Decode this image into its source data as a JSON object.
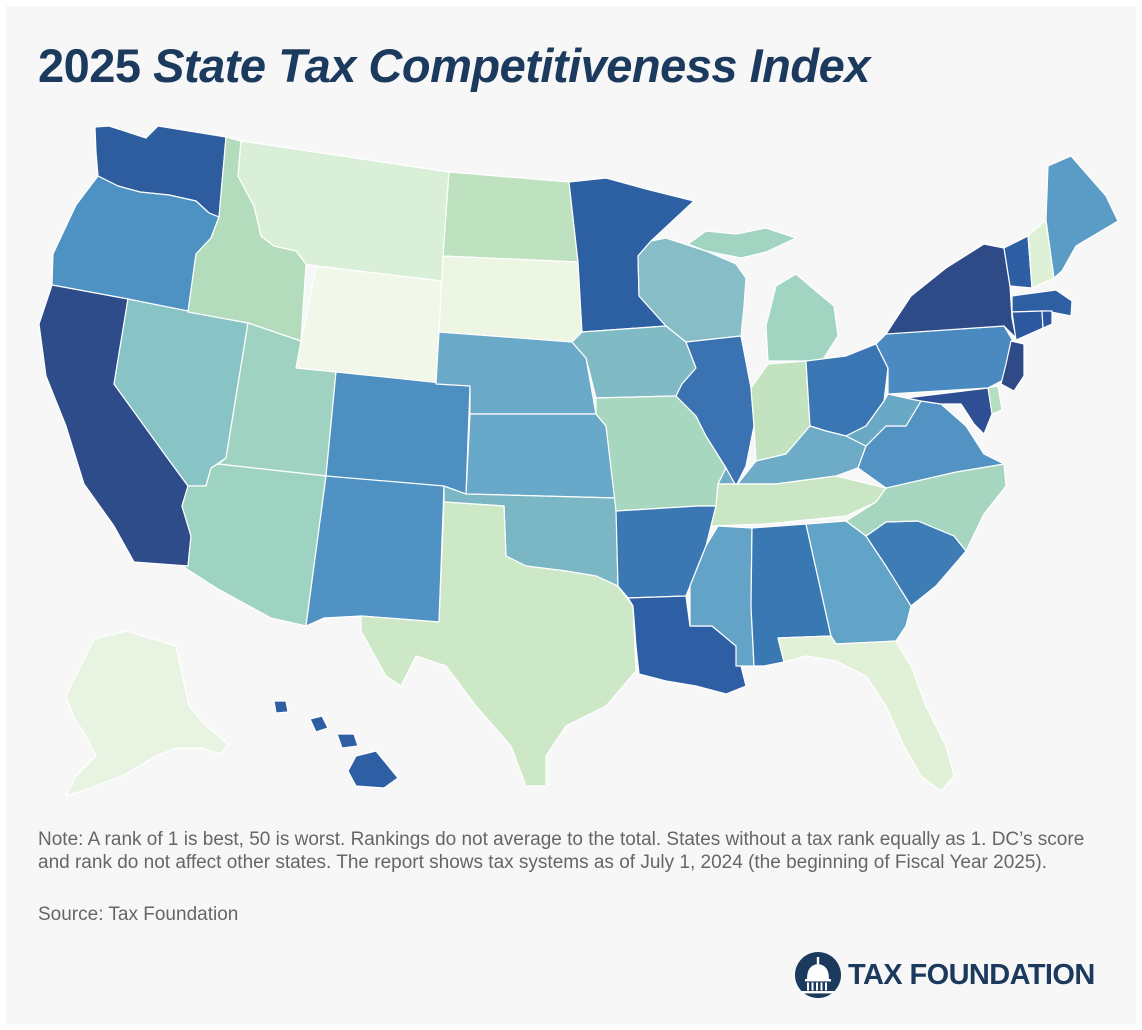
{
  "title": {
    "year": "2025",
    "name": "State Tax Competitiveness Index"
  },
  "note": "Note: A rank of 1 is best, 50 is worst. Rankings do not average to the total. States without a tax rank equally as 1. DC’s score and rank do not affect other states. The report shows tax systems as of July 1, 2024 (the beginning of Fiscal Year 2025).",
  "source": "Source: Tax Foundation",
  "logo_text": "TAX FOUNDATION",
  "colors": {
    "title": "#1b3a5e",
    "scale": [
      "#f1f8ea",
      "#e1f1d8",
      "#cde8c7",
      "#b4ddbe",
      "#a1d5c0",
      "#88c0c6",
      "#6aaac9",
      "#4f92c3",
      "#3a78b3",
      "#2b5d9d",
      "#2e4b87"
    ]
  },
  "states": [
    {
      "name": "Washington",
      "shade": "#2e5d9f"
    },
    {
      "name": "Oregon",
      "shade": "#4d92c3"
    },
    {
      "name": "California",
      "shade": "#2e4b8a"
    },
    {
      "name": "Nevada",
      "shade": "#88c3c5"
    },
    {
      "name": "Idaho",
      "shade": "#b2dcbc"
    },
    {
      "name": "Montana",
      "shade": "#d9efd7"
    },
    {
      "name": "Wyoming",
      "shade": "#f1f8ea"
    },
    {
      "name": "Utah",
      "shade": "#9fd2c1"
    },
    {
      "name": "Arizona",
      "shade": "#9ed3c1"
    },
    {
      "name": "Colorado",
      "shade": "#4c8fc0"
    },
    {
      "name": "New Mexico",
      "shade": "#4f92c3"
    },
    {
      "name": "North Dakota",
      "shade": "#bee1c0"
    },
    {
      "name": "South Dakota",
      "shade": "#ecf6e3"
    },
    {
      "name": "Nebraska",
      "shade": "#6ba9c9"
    },
    {
      "name": "Kansas",
      "shade": "#68a8c8"
    },
    {
      "name": "Oklahoma",
      "shade": "#7ab6c4"
    },
    {
      "name": "Texas",
      "shade": "#cde8c7"
    },
    {
      "name": "Minnesota",
      "shade": "#2d5fa3"
    },
    {
      "name": "Iowa",
      "shade": "#80bac5"
    },
    {
      "name": "Missouri",
      "shade": "#a8d7c0"
    },
    {
      "name": "Arkansas",
      "shade": "#3b78b3"
    },
    {
      "name": "Louisiana",
      "shade": "#2e5fa5"
    },
    {
      "name": "Wisconsin",
      "shade": "#86bdc6"
    },
    {
      "name": "Illinois",
      "shade": "#3a72b2"
    },
    {
      "name": "Michigan",
      "shade": "#a2d4c2"
    },
    {
      "name": "Indiana",
      "shade": "#c3e3c0"
    },
    {
      "name": "Ohio",
      "shade": "#3b76b4"
    },
    {
      "name": "Kentucky",
      "shade": "#6dabc7"
    },
    {
      "name": "Tennessee",
      "shade": "#cbe6c5"
    },
    {
      "name": "Mississippi",
      "shade": "#62a3c7"
    },
    {
      "name": "Alabama",
      "shade": "#3a78b3"
    },
    {
      "name": "Georgia",
      "shade": "#62a3c8"
    },
    {
      "name": "Florida",
      "shade": "#e1f1d8"
    },
    {
      "name": "South Carolina",
      "shade": "#3e7cb6"
    },
    {
      "name": "North Carolina",
      "shade": "#a6d5c0"
    },
    {
      "name": "Virginia",
      "shade": "#5293c3"
    },
    {
      "name": "West Virginia",
      "shade": "#6aa9c6"
    },
    {
      "name": "Pennsylvania",
      "shade": "#4b8ac0"
    },
    {
      "name": "New York",
      "shade": "#2e4b87"
    },
    {
      "name": "Vermont",
      "shade": "#2d5ea3"
    },
    {
      "name": "New Hampshire",
      "shade": "#def0d6"
    },
    {
      "name": "Maine",
      "shade": "#5a9cc5"
    },
    {
      "name": "Massachusetts",
      "shade": "#2f5fa3"
    },
    {
      "name": "Rhode Island",
      "shade": "#2c57a0"
    },
    {
      "name": "Connecticut",
      "shade": "#2c58a0"
    },
    {
      "name": "New Jersey",
      "shade": "#2e4b87"
    },
    {
      "name": "Delaware",
      "shade": "#b5ddc0"
    },
    {
      "name": "Maryland",
      "shade": "#2e4f94"
    },
    {
      "name": "Alaska",
      "shade": "#e8f4e1"
    },
    {
      "name": "Hawaii",
      "shade": "#2e5fa5"
    }
  ]
}
